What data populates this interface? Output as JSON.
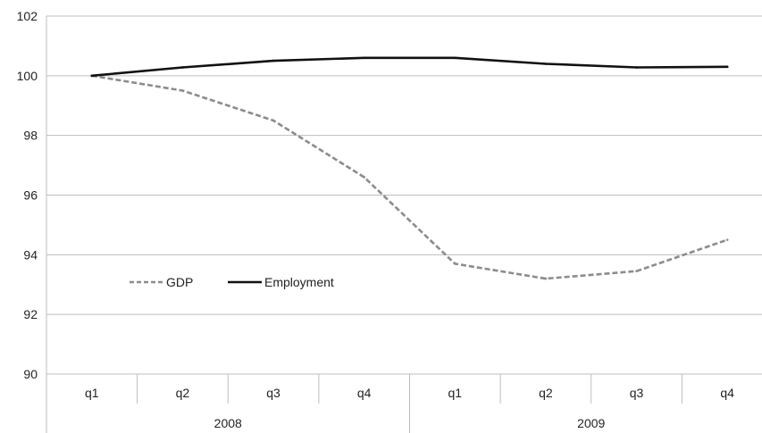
{
  "chart_data": {
    "type": "line",
    "title": "",
    "xlabel": "",
    "ylabel": "",
    "categories": [
      "q1",
      "q2",
      "q3",
      "q4",
      "q1",
      "q2",
      "q3",
      "q4"
    ],
    "groups": [
      {
        "label": "2008",
        "count": 4
      },
      {
        "label": "2009",
        "count": 4
      }
    ],
    "ylim": [
      90,
      102
    ],
    "yticks": [
      90,
      92,
      94,
      96,
      98,
      100,
      102
    ],
    "grid": true,
    "legend_position": "lower-left",
    "series": [
      {
        "name": "GDP",
        "color": "#8c8c8c",
        "style": "dashed",
        "values": [
          100.0,
          99.5,
          98.5,
          96.6,
          93.7,
          93.2,
          93.45,
          94.5
        ]
      },
      {
        "name": "Employment",
        "color": "#111111",
        "style": "solid",
        "values": [
          100.0,
          100.28,
          100.5,
          100.6,
          100.6,
          100.4,
          100.28,
          100.3
        ]
      }
    ]
  }
}
